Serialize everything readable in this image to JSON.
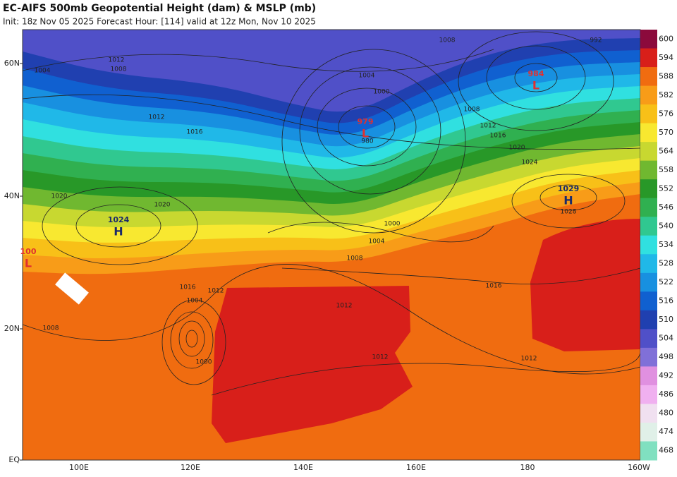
{
  "header": {
    "title": "EC-AIFS 500mb Geopotential Height (dam) & MSLP (mb)",
    "subtitle": "Init: 18z Nov 05 2025   Forecast Hour: [114]   valid at 12z Mon, Nov 10 2025"
  },
  "axes": {
    "lat_labels": [
      "60N",
      "40N",
      "20N",
      "EQ"
    ],
    "lon_labels": [
      "100E",
      "120E",
      "140E",
      "160E",
      "180",
      "160W"
    ]
  },
  "colorbar": {
    "labels": [
      600,
      594,
      588,
      582,
      576,
      570,
      564,
      558,
      552,
      546,
      540,
      534,
      528,
      522,
      516,
      510,
      504,
      498,
      492,
      486,
      480,
      474,
      468
    ],
    "colors": [
      "#8b0a3c",
      "#d81f1a",
      "#f06c10",
      "#f89c18",
      "#f8c018",
      "#f8e830",
      "#c8d830",
      "#70b830",
      "#289828",
      "#30b050",
      "#30c890",
      "#30e0e0",
      "#20b8e8",
      "#1890e0",
      "#1060d0",
      "#2040b0",
      "#5050c8",
      "#8070d8",
      "#e090e0",
      "#f0b0f0",
      "#f0e0f0",
      "#e0f0e8",
      "#80e0c0"
    ]
  },
  "pressure_centers": [
    {
      "type": "L",
      "value": "984"
    },
    {
      "type": "L",
      "value": "979"
    },
    {
      "type": "H",
      "value": "1029"
    },
    {
      "type": "H",
      "value": "1024"
    },
    {
      "type": "L",
      "value": "100"
    }
  ],
  "isobar_labels": [
    "1012",
    "1008",
    "1004",
    "1008",
    "992",
    "1004",
    "1000",
    "980",
    "1008",
    "1012",
    "1016",
    "1020",
    "1024",
    "1028",
    "1016",
    "1012",
    "1020",
    "1020",
    "1000",
    "1004",
    "1008",
    "1016",
    "1012",
    "1012",
    "1012",
    "1008",
    "1016",
    "1012",
    "1004",
    "1000"
  ]
}
